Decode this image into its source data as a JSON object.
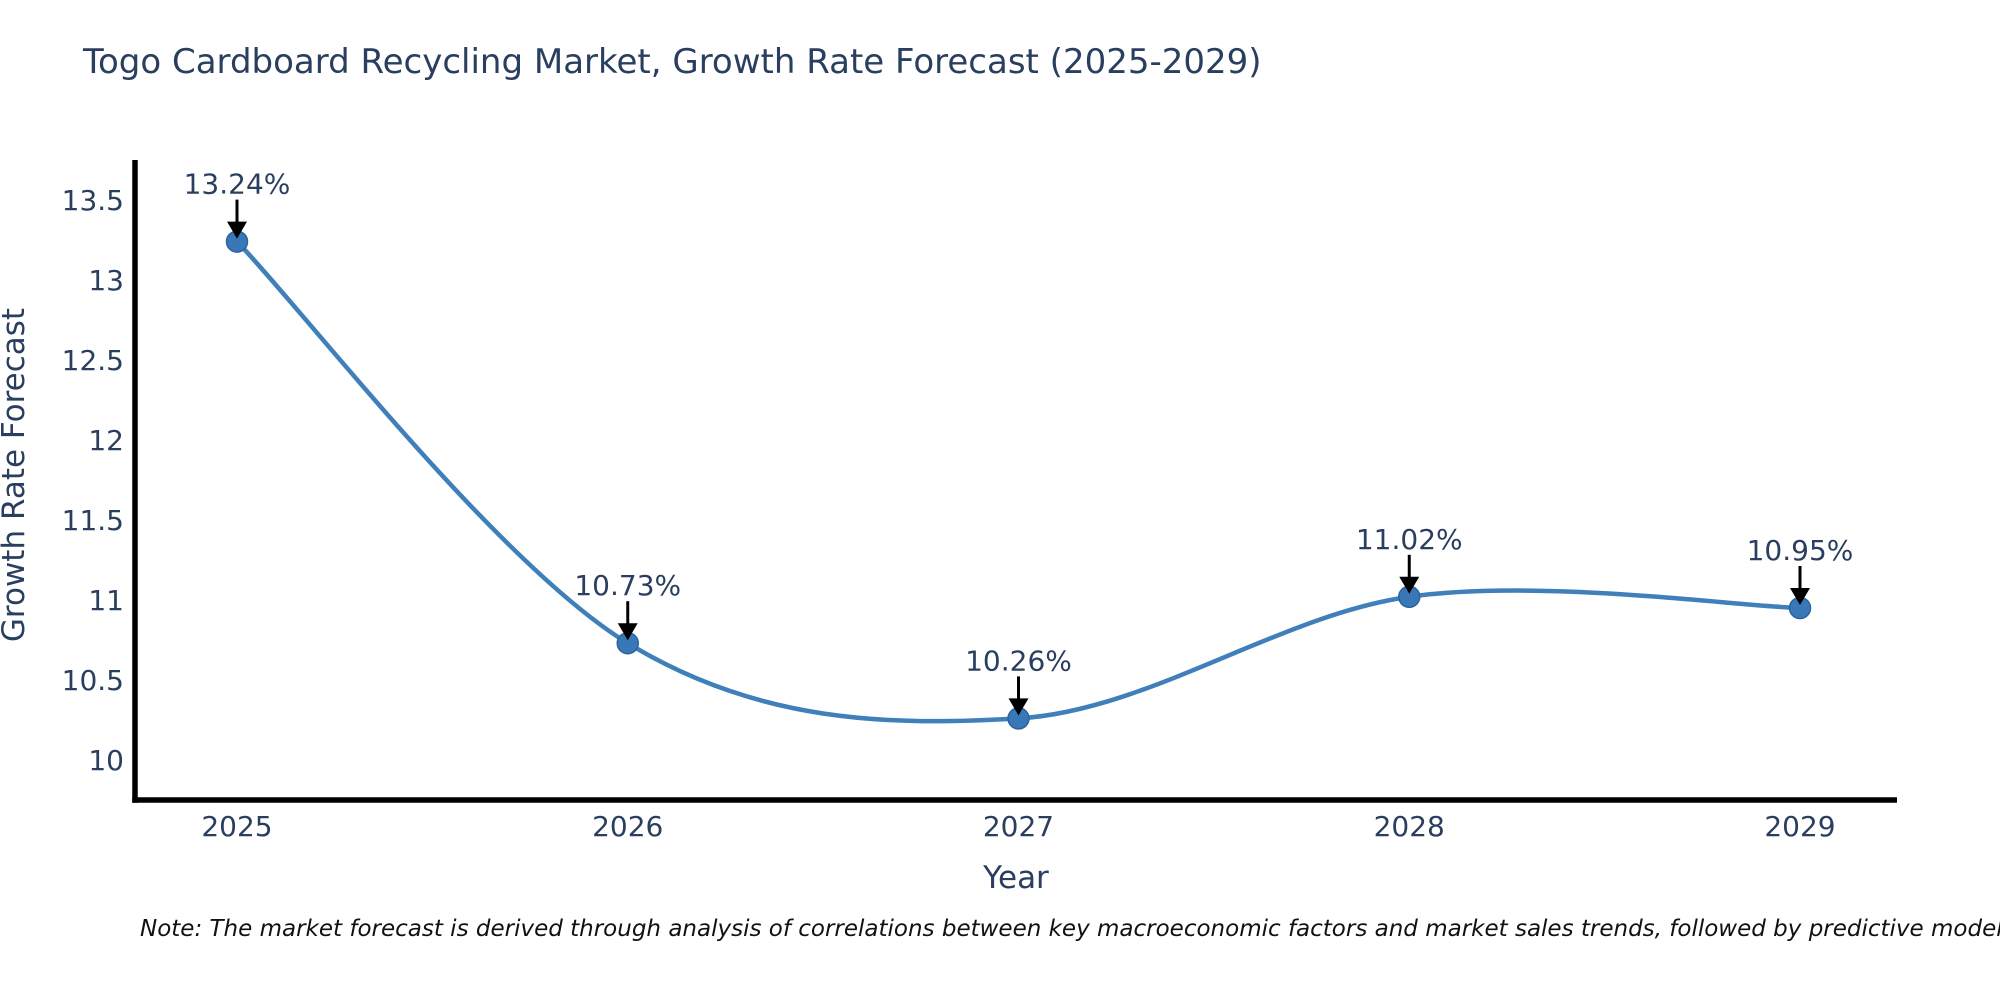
{
  "title": "Togo Cardboard Recycling Market, Growth Rate Forecast (2025-2029)",
  "note": "Note: The market forecast is derived through analysis of correlations between key macroeconomic factors and market sales trends, followed by predictive modeling to project future sal",
  "chart_data": {
    "type": "line",
    "line_shape": "spline",
    "title": "Togo Cardboard Recycling Market, Growth Rate Forecast (2025-2029)",
    "xlabel": "Year",
    "ylabel": "Growth Rate Forecast",
    "categories": [
      "2025",
      "2026",
      "2027",
      "2028",
      "2029"
    ],
    "series": [
      {
        "name": "Growth Rate Forecast",
        "values": [
          13.24,
          10.73,
          10.26,
          11.02,
          10.95
        ],
        "point_labels": [
          "13.24%",
          "10.73%",
          "10.26%",
          "11.02%",
          "10.95%"
        ]
      }
    ],
    "ylim": [
      9.75,
      13.75
    ],
    "yticks": [
      {
        "value": 13.5,
        "label": "13.5"
      },
      {
        "value": 13,
        "label": "13"
      },
      {
        "value": 12.5,
        "label": "12.5"
      },
      {
        "value": 12,
        "label": "12"
      },
      {
        "value": 11.5,
        "label": "11.5"
      },
      {
        "value": 11,
        "label": "11"
      },
      {
        "value": 10.5,
        "label": "10.5"
      },
      {
        "value": 10,
        "label": "10"
      }
    ],
    "grid": false,
    "legend": "none",
    "colors": {
      "line": "#3f7fba",
      "marker": "#3878b6",
      "marker_edge": "#2d639b",
      "axis": "#000000",
      "text": "#2a3f5f",
      "annotation_arrow": "#000000",
      "note_text": "#111111",
      "background": "#ffffff"
    }
  }
}
